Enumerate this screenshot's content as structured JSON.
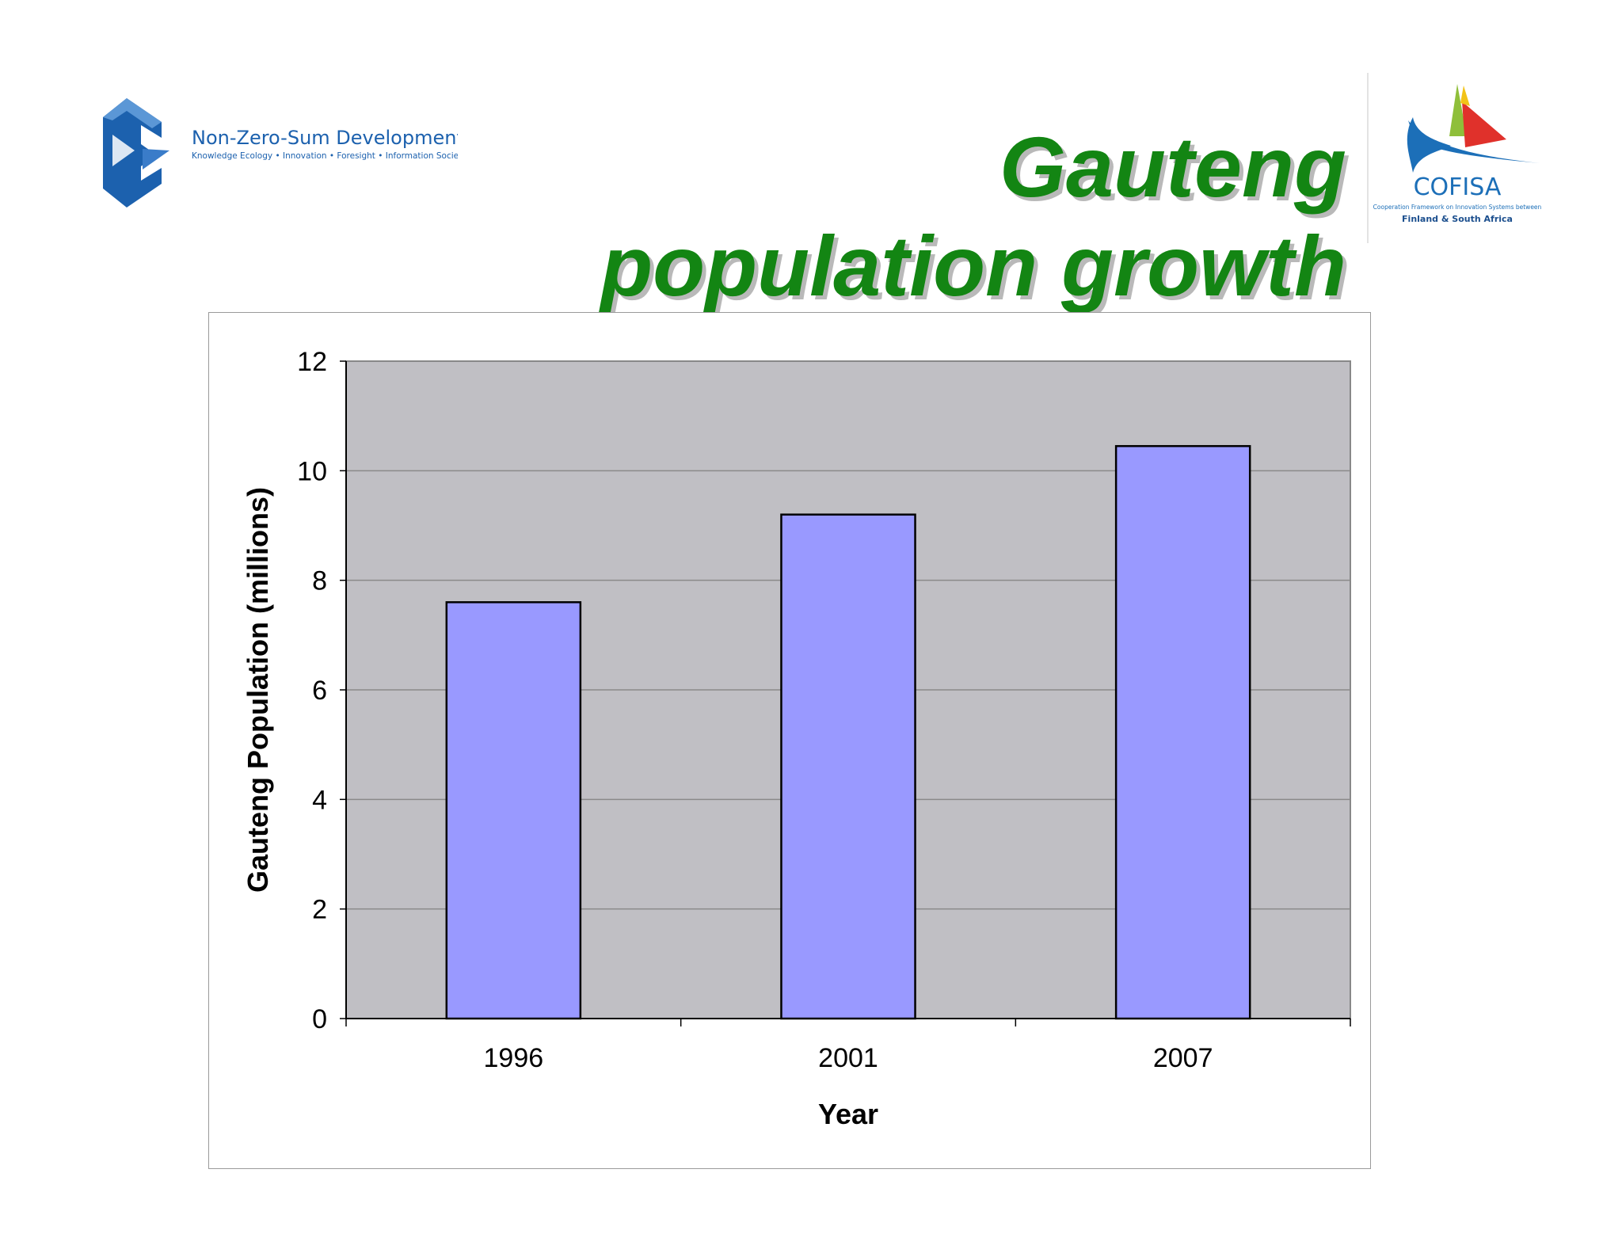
{
  "logos": {
    "nzsd_name": "Non-Zero-Sum Development",
    "nzsd_tagline": "Knowledge Ecology • Innovation • Foresight • Information Society",
    "cofisa_name": "COFISA",
    "cofisa_tagline1": "Cooperation Framework on Innovation Systems between",
    "cofisa_tagline2": "Finland & South Africa"
  },
  "title": {
    "line1": "Gauteng",
    "line2": "population growth"
  },
  "colors": {
    "title": "#138513",
    "plot_background": "#c0bfc4",
    "bar_fill": "#9999ff",
    "nzsd_blue": "#1c61ae",
    "cofisa_blue": "#1c6fb8"
  },
  "chart_data": {
    "type": "bar",
    "categories": [
      "1996",
      "2001",
      "2007"
    ],
    "values": [
      7.6,
      9.2,
      10.45
    ],
    "xlabel": "Year",
    "ylabel": "Gauteng Population (millions)",
    "ylim": [
      0,
      12
    ],
    "yticks": [
      0,
      2,
      4,
      6,
      8,
      10,
      12
    ],
    "grid": true,
    "legend": "none"
  }
}
